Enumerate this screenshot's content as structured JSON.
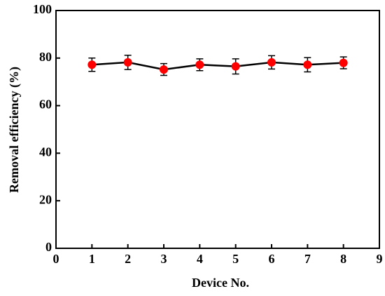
{
  "chart_data": {
    "type": "line",
    "xlabel": "Device No.",
    "ylabel": "Removal efficiency (%)",
    "x": [
      1,
      2,
      3,
      4,
      5,
      6,
      7,
      8
    ],
    "values": [
      77.2,
      78.2,
      75.2,
      77.2,
      76.5,
      78.2,
      77.2,
      78.0
    ],
    "errors": [
      2.8,
      3.0,
      2.5,
      2.5,
      3.2,
      2.8,
      3.0,
      2.5
    ],
    "line_color": "#000000",
    "marker_color": "#ff0000",
    "xlim": [
      0,
      9
    ],
    "xticks": [
      0,
      1,
      2,
      3,
      4,
      5,
      6,
      7,
      8,
      9
    ],
    "ylim": [
      0,
      100
    ],
    "yticks": [
      0,
      20,
      40,
      60,
      80,
      100
    ]
  }
}
